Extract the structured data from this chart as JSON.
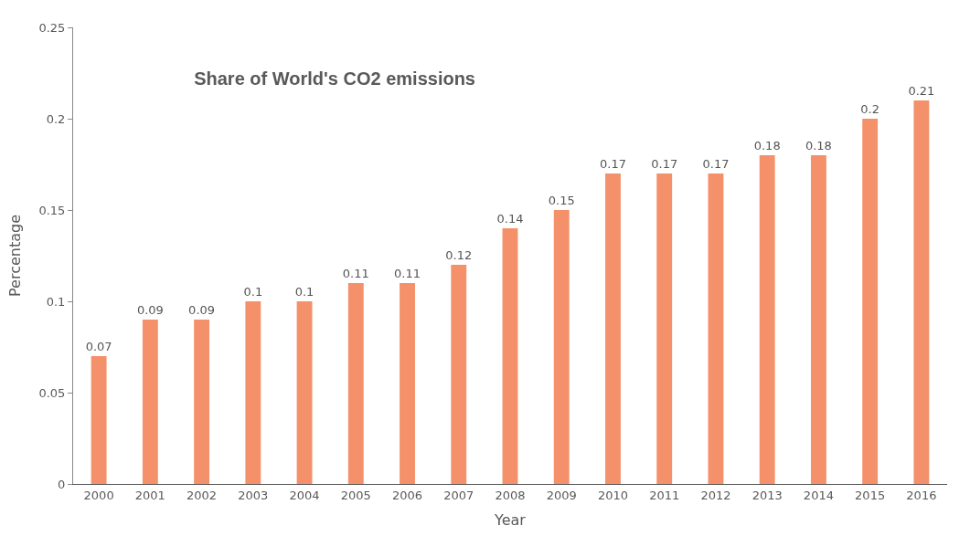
{
  "chart_data": {
    "type": "bar",
    "title": "Share of World's CO2 emissions",
    "xlabel": "Year",
    "ylabel": "Percentage",
    "categories": [
      "2000",
      "2001",
      "2002",
      "2003",
      "2004",
      "2005",
      "2006",
      "2007",
      "2008",
      "2009",
      "2010",
      "2011",
      "2012",
      "2013",
      "2014",
      "2015",
      "2016"
    ],
    "values": [
      0.07,
      0.09,
      0.09,
      0.1,
      0.1,
      0.11,
      0.11,
      0.12,
      0.14,
      0.15,
      0.17,
      0.17,
      0.17,
      0.18,
      0.18,
      0.2,
      0.21
    ],
    "color": "#f4906a",
    "ylim": [
      0,
      0.25
    ],
    "yticks": [
      0,
      0.05,
      0.1,
      0.15,
      0.2,
      0.25
    ],
    "legend": false,
    "data_labels": true
  }
}
